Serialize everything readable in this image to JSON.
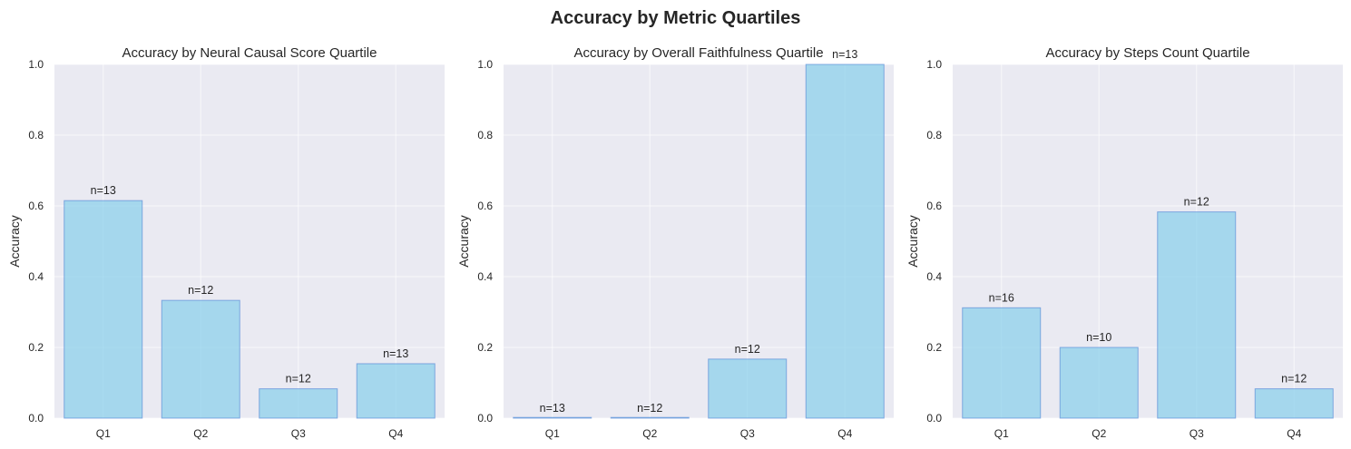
{
  "figure": {
    "title": "Accuracy by Metric Quartiles"
  },
  "colors": {
    "plot_bg": "#EAEAF2",
    "grid": "#FFFFFF",
    "bar_fill": "#87CEEB",
    "bar_edge": "#4A7FD4",
    "text": "#262626"
  },
  "chart_data": [
    {
      "type": "bar",
      "title": "Accuracy by Neural Causal Score Quartile",
      "xlabel": "",
      "ylabel": "Accuracy",
      "ylim": [
        0,
        1.0
      ],
      "yticks": [
        "0.0",
        "0.2",
        "0.4",
        "0.6",
        "0.8",
        "1.0"
      ],
      "grid": true,
      "categories": [
        "Q1",
        "Q2",
        "Q3",
        "Q4"
      ],
      "values": [
        0.615,
        0.333,
        0.083,
        0.154
      ],
      "annotations": [
        "n=13",
        "n=12",
        "n=12",
        "n=13"
      ]
    },
    {
      "type": "bar",
      "title": "Accuracy by Overall Faithfulness Quartile",
      "xlabel": "",
      "ylabel": "Accuracy",
      "ylim": [
        0,
        1.0
      ],
      "yticks": [
        "0.0",
        "0.2",
        "0.4",
        "0.6",
        "0.8",
        "1.0"
      ],
      "grid": true,
      "categories": [
        "Q1",
        "Q2",
        "Q3",
        "Q4"
      ],
      "values": [
        0.0,
        0.0,
        0.167,
        1.0
      ],
      "annotations": [
        "n=13",
        "n=12",
        "n=12",
        "n=13"
      ]
    },
    {
      "type": "bar",
      "title": "Accuracy by Steps Count Quartile",
      "xlabel": "",
      "ylabel": "Accuracy",
      "ylim": [
        0,
        1.0
      ],
      "yticks": [
        "0.0",
        "0.2",
        "0.4",
        "0.6",
        "0.8",
        "1.0"
      ],
      "grid": true,
      "categories": [
        "Q1",
        "Q2",
        "Q3",
        "Q4"
      ],
      "values": [
        0.312,
        0.2,
        0.583,
        0.083
      ],
      "annotations": [
        "n=16",
        "n=10",
        "n=12",
        "n=12"
      ]
    }
  ]
}
